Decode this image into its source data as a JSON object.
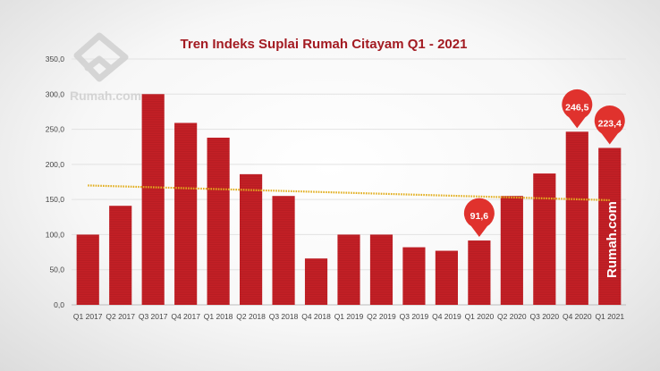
{
  "chart_data": {
    "type": "bar",
    "title": "Tren Indeks Suplai Rumah Citayam Q1 - 2021",
    "xlabel": "",
    "ylabel": "",
    "ylim": [
      0,
      350
    ],
    "yticks": [
      "0,0",
      "50,0",
      "100,0",
      "150,0",
      "200,0",
      "250,0",
      "300,0",
      "350,0"
    ],
    "categories": [
      "Q1 2017",
      "Q2 2017",
      "Q3 2017",
      "Q4 2017",
      "Q1 2018",
      "Q2 2018",
      "Q3 2018",
      "Q4 2018",
      "Q1 2019",
      "Q2 2019",
      "Q3 2019",
      "Q4 2019",
      "Q1 2020",
      "Q2 2020",
      "Q3 2020",
      "Q4 2020",
      "Q1 2021"
    ],
    "values": [
      100,
      141,
      300,
      259,
      238,
      186,
      155,
      66,
      100,
      100,
      82,
      77,
      91.6,
      155,
      187,
      246.5,
      223.4
    ],
    "trendline": {
      "start": 170,
      "end": 149
    },
    "callouts": [
      {
        "index": 12,
        "label": "91,6"
      },
      {
        "index": 15,
        "label": "246,5"
      },
      {
        "index": 16,
        "label": "223,4"
      }
    ],
    "grid": true,
    "colors": {
      "bar": "#c42026",
      "trend": "#e2ae1e",
      "pin": "#e0322d",
      "title": "#a31b22"
    }
  },
  "watermark": {
    "logo_text": "Rumah.com",
    "side_text": "Rumah.com"
  }
}
